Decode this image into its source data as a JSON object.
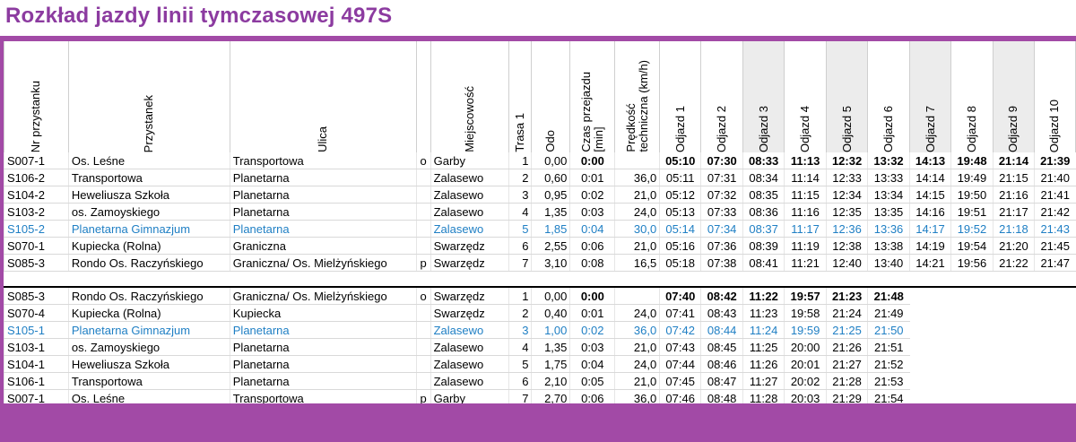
{
  "title": "Rozkład jazdy linii tymczasowej 497S",
  "headers": {
    "nr": "Nr przystanku",
    "stop": "Przystanek",
    "street": "Ulica",
    "city": "Miejscowość",
    "route": "Trasa 1",
    "odo": "Odo",
    "time_line1": "Czas przejazdu",
    "time_line2": "[min]",
    "speed_line1": "Prędkość",
    "speed_line2": "techniczna (km/h)",
    "departures": [
      "Odjazd 1",
      "Odjazd 2",
      "Odjazd 3",
      "Odjazd 4",
      "Odjazd 5",
      "Odjazd 6",
      "Odjazd 7",
      "Odjazd 8",
      "Odjazd 9",
      "Odjazd 10"
    ]
  },
  "direction1": [
    {
      "nr": "S007-1",
      "stop": "Os. Leśne",
      "street": "Transportowa",
      "flag": "o",
      "city": "Garby",
      "seq": "1",
      "odo": "0,00",
      "time": "0:00",
      "speed": "",
      "deps": [
        "05:10",
        "07:30",
        "08:33",
        "11:13",
        "12:32",
        "13:32",
        "14:13",
        "19:48",
        "21:14",
        "21:39"
      ],
      "bold": true,
      "blue": false
    },
    {
      "nr": "S106-2",
      "stop": "Transportowa",
      "street": "Planetarna",
      "flag": "",
      "city": "Zalasewo",
      "seq": "2",
      "odo": "0,60",
      "time": "0:01",
      "speed": "36,0",
      "deps": [
        "05:11",
        "07:31",
        "08:34",
        "11:14",
        "12:33",
        "13:33",
        "14:14",
        "19:49",
        "21:15",
        "21:40"
      ],
      "bold": false,
      "blue": false
    },
    {
      "nr": "S104-2",
      "stop": "Heweliusza Szkoła",
      "street": "Planetarna",
      "flag": "",
      "city": "Zalasewo",
      "seq": "3",
      "odo": "0,95",
      "time": "0:02",
      "speed": "21,0",
      "deps": [
        "05:12",
        "07:32",
        "08:35",
        "11:15",
        "12:34",
        "13:34",
        "14:15",
        "19:50",
        "21:16",
        "21:41"
      ],
      "bold": false,
      "blue": false
    },
    {
      "nr": "S103-2",
      "stop": "os. Zamoyskiego",
      "street": "Planetarna",
      "flag": "",
      "city": "Zalasewo",
      "seq": "4",
      "odo": "1,35",
      "time": "0:03",
      "speed": "24,0",
      "deps": [
        "05:13",
        "07:33",
        "08:36",
        "11:16",
        "12:35",
        "13:35",
        "14:16",
        "19:51",
        "21:17",
        "21:42"
      ],
      "bold": false,
      "blue": false
    },
    {
      "nr": "S105-2",
      "stop": "Planetarna Gimnazjum",
      "street": "Planetarna",
      "flag": "",
      "city": "Zalasewo",
      "seq": "5",
      "odo": "1,85",
      "time": "0:04",
      "speed": "30,0",
      "deps": [
        "05:14",
        "07:34",
        "08:37",
        "11:17",
        "12:36",
        "13:36",
        "14:17",
        "19:52",
        "21:18",
        "21:43"
      ],
      "bold": false,
      "blue": true
    },
    {
      "nr": "S070-1",
      "stop": "Kupiecka (Rolna)",
      "street": "Graniczna",
      "flag": "",
      "city": "Swarzędz",
      "seq": "6",
      "odo": "2,55",
      "time": "0:06",
      "speed": "21,0",
      "deps": [
        "05:16",
        "07:36",
        "08:39",
        "11:19",
        "12:38",
        "13:38",
        "14:19",
        "19:54",
        "21:20",
        "21:45"
      ],
      "bold": false,
      "blue": false
    },
    {
      "nr": "S085-3",
      "stop": "Rondo Os. Raczyńskiego",
      "street": "Graniczna/ Os. Mielżyńskiego",
      "flag": "p",
      "city": "Swarzędz",
      "seq": "7",
      "odo": "3,10",
      "time": "0:08",
      "speed": "16,5",
      "deps": [
        "05:18",
        "07:38",
        "08:41",
        "11:21",
        "12:40",
        "13:40",
        "14:21",
        "19:56",
        "21:22",
        "21:47"
      ],
      "bold": false,
      "blue": false
    }
  ],
  "direction2": [
    {
      "nr": "S085-3",
      "stop": "Rondo Os. Raczyńskiego",
      "street": "Graniczna/ Os. Mielżyńskiego",
      "flag": "o",
      "city": "Swarzędz",
      "seq": "1",
      "odo": "0,00",
      "time": "0:00",
      "speed": "",
      "deps": [
        "07:40",
        "08:42",
        "11:22",
        "19:57",
        "21:23",
        "21:48"
      ],
      "bold": true,
      "blue": false
    },
    {
      "nr": "S070-4",
      "stop": "Kupiecka (Rolna)",
      "street": "Kupiecka",
      "flag": "",
      "city": "Swarzędz",
      "seq": "2",
      "odo": "0,40",
      "time": "0:01",
      "speed": "24,0",
      "deps": [
        "07:41",
        "08:43",
        "11:23",
        "19:58",
        "21:24",
        "21:49"
      ],
      "bold": false,
      "blue": false
    },
    {
      "nr": "S105-1",
      "stop": "Planetarna Gimnazjum",
      "street": "Planetarna",
      "flag": "",
      "city": "Zalasewo",
      "seq": "3",
      "odo": "1,00",
      "time": "0:02",
      "speed": "36,0",
      "deps": [
        "07:42",
        "08:44",
        "11:24",
        "19:59",
        "21:25",
        "21:50"
      ],
      "bold": false,
      "blue": true
    },
    {
      "nr": "S103-1",
      "stop": "os. Zamoyskiego",
      "street": "Planetarna",
      "flag": "",
      "city": "Zalasewo",
      "seq": "4",
      "odo": "1,35",
      "time": "0:03",
      "speed": "21,0",
      "deps": [
        "07:43",
        "08:45",
        "11:25",
        "20:00",
        "21:26",
        "21:51"
      ],
      "bold": false,
      "blue": false
    },
    {
      "nr": "S104-1",
      "stop": "Heweliusza Szkoła",
      "street": "Planetarna",
      "flag": "",
      "city": "Zalasewo",
      "seq": "5",
      "odo": "1,75",
      "time": "0:04",
      "speed": "24,0",
      "deps": [
        "07:44",
        "08:46",
        "11:26",
        "20:01",
        "21:27",
        "21:52"
      ],
      "bold": false,
      "blue": false
    },
    {
      "nr": "S106-1",
      "stop": "Transportowa",
      "street": "Planetarna",
      "flag": "",
      "city": "Zalasewo",
      "seq": "6",
      "odo": "2,10",
      "time": "0:05",
      "speed": "21,0",
      "deps": [
        "07:45",
        "08:47",
        "11:27",
        "20:02",
        "21:28",
        "21:53"
      ],
      "bold": false,
      "blue": false
    },
    {
      "nr": "S007-1",
      "stop": "Os. Leśne",
      "street": "Transportowa",
      "flag": "p",
      "city": "Garby",
      "seq": "7",
      "odo": "2,70",
      "time": "0:06",
      "speed": "36,0",
      "deps": [
        "07:46",
        "08:48",
        "11:28",
        "20:03",
        "21:29",
        "21:54"
      ],
      "bold": false,
      "blue": false
    }
  ],
  "colors": {
    "accent": "#a24aa6",
    "title": "#8c3ba0",
    "highlight_row": "#1f7fc4",
    "shade": "#ececec"
  }
}
